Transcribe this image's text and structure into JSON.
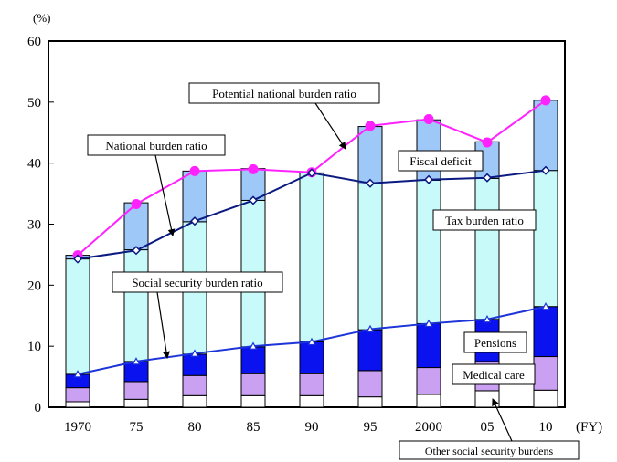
{
  "chart_data": {
    "type": "bar",
    "unit_label": "(%)",
    "x_unit_label": "(FY)",
    "categories": [
      "1970",
      "75",
      "80",
      "85",
      "90",
      "95",
      "2000",
      "05",
      "10"
    ],
    "ylim": [
      0,
      60
    ],
    "yticks": [
      "0",
      "10",
      "20",
      "30",
      "40",
      "50",
      "60"
    ],
    "stack_series": [
      {
        "key": "other",
        "values": [
          0.9,
          1.3,
          1.9,
          1.9,
          1.9,
          1.7,
          2.1,
          2.7,
          2.8
        ],
        "color": "#ffffff"
      },
      {
        "key": "medical",
        "values": [
          2.3,
          2.9,
          3.3,
          3.6,
          3.6,
          4.3,
          4.4,
          4.8,
          5.5
        ],
        "color": "#c9a0f2"
      },
      {
        "key": "pensions",
        "values": [
          2.2,
          3.3,
          3.5,
          4.4,
          5.2,
          6.7,
          7.2,
          6.9,
          8.2
        ],
        "color": "#0a12f0"
      },
      {
        "key": "tax",
        "values": [
          18.9,
          18.3,
          21.7,
          24.0,
          27.7,
          23.9,
          23.5,
          23.1,
          22.3
        ],
        "color": "#c8fafa"
      },
      {
        "key": "deficit",
        "values": [
          0.6,
          7.7,
          8.3,
          5.2,
          -0.1,
          9.4,
          9.9,
          6.0,
          11.5
        ],
        "color": "#9ec8f8"
      }
    ],
    "line_series": [
      {
        "key": "potential",
        "values": [
          24.9,
          33.3,
          38.7,
          39.0,
          38.5,
          46.1,
          47.2,
          43.4,
          50.3
        ],
        "color": "#ff22ff",
        "marker": "circle"
      },
      {
        "key": "national",
        "values": [
          24.3,
          25.7,
          30.5,
          33.9,
          38.4,
          36.7,
          37.3,
          37.6,
          38.8
        ],
        "color": "#0a1a80",
        "marker": "diamond"
      },
      {
        "key": "social",
        "values": [
          5.4,
          7.5,
          8.8,
          10.0,
          10.7,
          12.8,
          13.7,
          14.4,
          16.5
        ],
        "color": "#1c34d8",
        "marker": "triangle"
      }
    ],
    "annotations": {
      "potential": "Potential national burden ratio",
      "national": "National burden ratio",
      "social": "Social security burden ratio",
      "deficit": "Fiscal deficit",
      "tax": "Tax burden ratio",
      "pensions": "Pensions",
      "medical": "Medical care",
      "other": "Other social security burdens"
    }
  }
}
